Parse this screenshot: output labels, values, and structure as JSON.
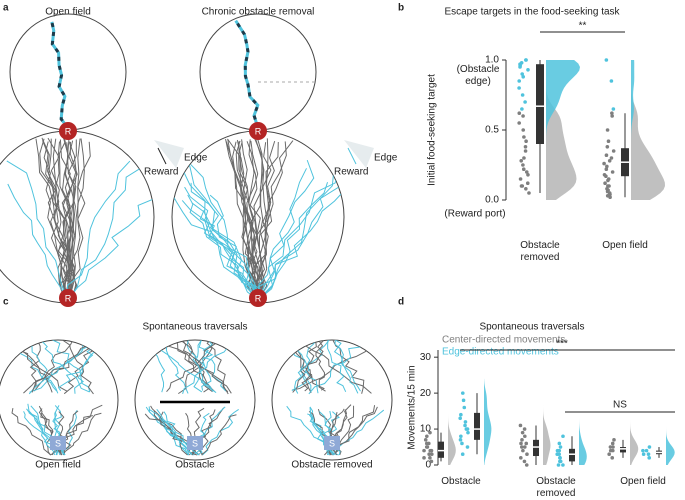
{
  "panel_labels": [
    "a",
    "b",
    "c",
    "d"
  ],
  "panel_a": {
    "titles": [
      "Open field",
      "Chronic obstacle removal"
    ],
    "marker": "R",
    "edge_label": "Edge",
    "reward_label": "Reward"
  },
  "panel_b": {
    "chart_data": {
      "type": "box",
      "title": "Escape targets in the food-seeking task",
      "y_label": "Initial food-seeking target",
      "ylim": [
        0,
        1
      ],
      "yticks": [
        {
          "value": 0,
          "label": "0.0"
        },
        {
          "value": 0.5,
          "label": "0.5"
        },
        {
          "value": 1,
          "label": "1.0"
        }
      ],
      "tick_annotations": [
        "(Obstacle edge)",
        "(Reward port)"
      ],
      "center_color": "#7f7f7f",
      "edge_color": "#4fc3dd",
      "box_color": "#333333",
      "significance": "**",
      "groups": [
        {
          "category": "Obstacle removed",
          "box": {
            "low": 0.05,
            "q1": 0.4,
            "median": 0.67,
            "q3": 0.97,
            "high": 1.0
          },
          "center_points": [
            0.05,
            0.08,
            0.1,
            0.12,
            0.15,
            0.18,
            0.2,
            0.22,
            0.25,
            0.28,
            0.3,
            0.35,
            0.38,
            0.42,
            0.45,
            0.5,
            0.55,
            0.6,
            0.62,
            0.1
          ],
          "edge_points": [
            0.65,
            0.7,
            0.75,
            0.8,
            0.85,
            0.88,
            0.9,
            0.93,
            0.95,
            0.96,
            0.97,
            0.98,
            1.0,
            1.0
          ]
        },
        {
          "category": "Open field",
          "box": {
            "low": 0.02,
            "q1": 0.17,
            "median": 0.27,
            "q3": 0.37,
            "high": 0.62
          },
          "center_points": [
            0.02,
            0.03,
            0.04,
            0.05,
            0.06,
            0.07,
            0.08,
            0.1,
            0.1,
            0.12,
            0.14,
            0.15,
            0.17,
            0.18,
            0.2,
            0.22,
            0.24,
            0.26,
            0.28,
            0.3,
            0.32,
            0.35,
            0.38,
            0.42,
            0.5,
            0.6,
            0.62
          ],
          "edge_points": [
            0.65,
            0.85,
            1.0
          ]
        }
      ]
    }
  },
  "panel_c": {
    "title": "Spontaneous traversals",
    "labels": [
      "Open field",
      "Obstacle",
      "Obstacle removed"
    ],
    "marker": "S"
  },
  "panel_d": {
    "chart_data": {
      "type": "box",
      "title": "Spontaneous traversals",
      "y_label": "Movements/15 min",
      "ylim": [
        0,
        32
      ],
      "yticks": [
        0,
        10,
        20,
        30
      ],
      "series": [
        {
          "name": "Center-directed movements",
          "color": "#7f7f7f"
        },
        {
          "name": "Edge-directed movements",
          "color": "#4fc3dd"
        }
      ],
      "box_color": "#333333",
      "significance": [
        "***",
        "NS"
      ],
      "groups": [
        {
          "category": "Obstacle",
          "center": {
            "box": {
              "low": 1,
              "q1": 2,
              "median": 4,
              "q3": 6.5,
              "high": 9
            },
            "points": [
              1,
              2,
              2,
              3,
              3,
              4,
              4,
              4,
              5,
              5,
              6,
              6,
              7,
              8,
              9
            ]
          },
          "edge": {
            "box": {
              "low": 3,
              "q1": 7,
              "median": 10,
              "q3": 14.5,
              "high": 20
            },
            "points": [
              3,
              5,
              6,
              7,
              8,
              9,
              10,
              10,
              11,
              12,
              13,
              14,
              16,
              18,
              20
            ]
          }
        },
        {
          "category": "Obstacle removed",
          "center": {
            "box": {
              "low": 0,
              "q1": 2.5,
              "median": 5,
              "q3": 7,
              "high": 11
            },
            "points": [
              0,
              1,
              2,
              3,
              4,
              5,
              5,
              6,
              6,
              7,
              8,
              9,
              10,
              11
            ]
          },
          "edge": {
            "box": {
              "low": 0,
              "q1": 1,
              "median": 3,
              "q3": 4.5,
              "high": 8
            },
            "points": [
              0,
              0,
              1,
              1,
              2,
              2,
              3,
              3,
              4,
              4,
              5,
              6,
              8
            ]
          }
        },
        {
          "category": "Open field",
          "center": {
            "box": {
              "low": 2,
              "q1": 3.5,
              "median": 4.5,
              "q3": 5,
              "high": 7
            },
            "points": [
              2,
              3,
              4,
              4,
              5,
              5,
              6,
              7
            ]
          },
          "edge": {
            "box": {
              "low": 2,
              "q1": 3,
              "median": 3.5,
              "q3": 4,
              "high": 5
            },
            "points": [
              2,
              3,
              3,
              4,
              4,
              5
            ]
          }
        }
      ]
    }
  }
}
